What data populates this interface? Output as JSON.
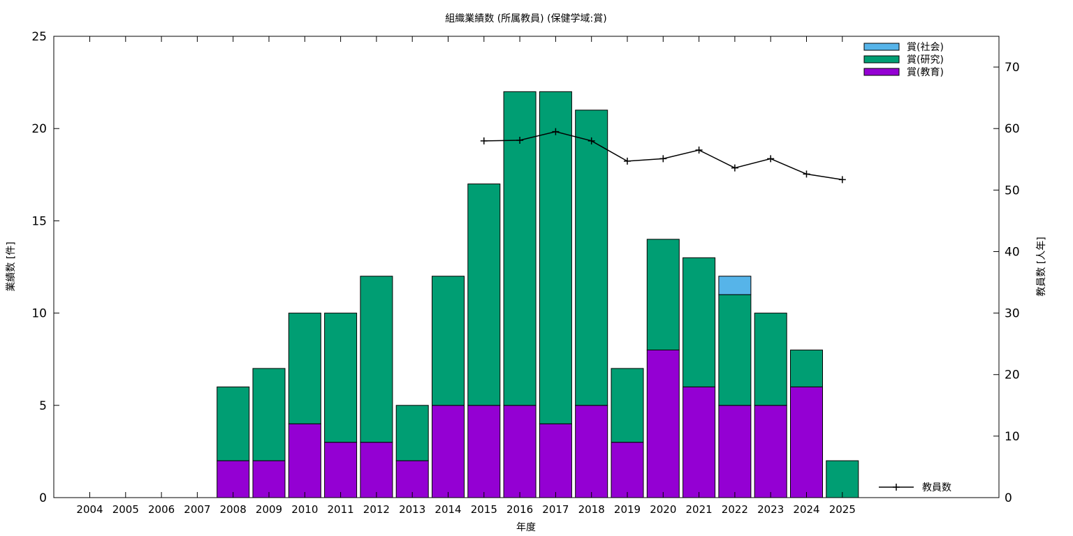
{
  "chart_data": {
    "type": "bar",
    "title": "組織業績数 (所属教員) (保健学域:賞)",
    "xlabel": "年度",
    "ylabel": "業績数 [件]",
    "y2label": "教員数 [人年]",
    "ylim": [
      0,
      25
    ],
    "y2lim": [
      0,
      75
    ],
    "yticks": [
      0,
      5,
      10,
      15,
      20,
      25
    ],
    "y2ticks": [
      0,
      10,
      20,
      30,
      40,
      50,
      60,
      70
    ],
    "stacked": true,
    "grid": false,
    "legend_position": "top-right",
    "categories": [
      "2004",
      "2005",
      "2006",
      "2007",
      "2008",
      "2009",
      "2010",
      "2011",
      "2012",
      "2013",
      "2014",
      "2015",
      "2016",
      "2017",
      "2018",
      "2019",
      "2020",
      "2021",
      "2022",
      "2023",
      "2024",
      "2025"
    ],
    "series": [
      {
        "name": "賞(教育)",
        "color": "#9400d3",
        "values": [
          0,
          0,
          0,
          0,
          2,
          2,
          4,
          3,
          3,
          2,
          5,
          5,
          5,
          4,
          5,
          3,
          8,
          6,
          5,
          5,
          6,
          0
        ]
      },
      {
        "name": "賞(研究)",
        "color": "#009e73",
        "values": [
          0,
          0,
          0,
          0,
          4,
          5,
          6,
          7,
          9,
          3,
          7,
          12,
          17,
          18,
          16,
          4,
          6,
          7,
          6,
          5,
          2,
          2
        ]
      },
      {
        "name": "賞(社会)",
        "color": "#56b4e9",
        "values": [
          0,
          0,
          0,
          0,
          0,
          0,
          0,
          0,
          0,
          0,
          0,
          0,
          0,
          0,
          0,
          0,
          0,
          0,
          1,
          0,
          0,
          0
        ]
      }
    ],
    "line_series": {
      "name": "教員数",
      "axis": "y2",
      "color": "#000000",
      "x": [
        "2015",
        "2016",
        "2017",
        "2018",
        "2019",
        "2020",
        "2021",
        "2022",
        "2023",
        "2024",
        "2025"
      ],
      "values": [
        58.0,
        58.1,
        59.5,
        58.0,
        54.7,
        55.1,
        56.5,
        53.6,
        55.1,
        52.6,
        51.7
      ]
    }
  }
}
